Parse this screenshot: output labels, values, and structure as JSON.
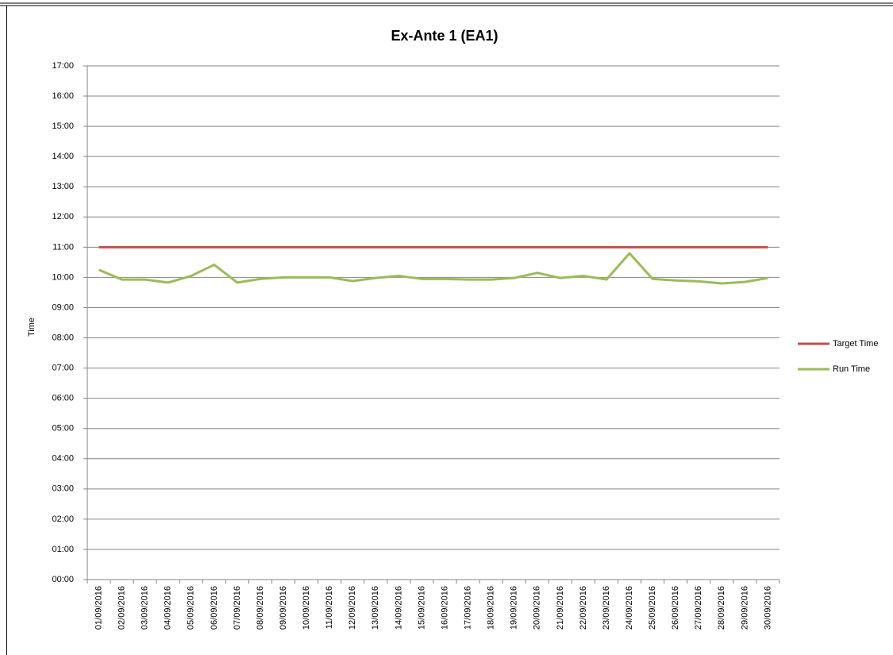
{
  "chart_data": {
    "type": "line",
    "title": "Ex-Ante 1 (EA1)",
    "y_label": "Time",
    "categories": [
      "01/09/2016",
      "02/09/2016",
      "03/09/2016",
      "04/09/2016",
      "05/09/2016",
      "06/09/2016",
      "07/09/2016",
      "08/09/2016",
      "09/09/2016",
      "10/09/2016",
      "11/09/2016",
      "12/09/2016",
      "13/09/2016",
      "14/09/2016",
      "15/09/2016",
      "16/09/2016",
      "17/09/2016",
      "18/09/2016",
      "19/09/2016",
      "20/09/2016",
      "21/09/2016",
      "22/09/2016",
      "23/09/2016",
      "24/09/2016",
      "25/09/2016",
      "26/09/2016",
      "27/09/2016",
      "28/09/2016",
      "29/09/2016",
      "30/09/2016"
    ],
    "series": [
      {
        "name": "Target Time",
        "color": "#c0504d",
        "values": [
          11,
          11,
          11,
          11,
          11,
          11,
          11,
          11,
          11,
          11,
          11,
          11,
          11,
          11,
          11,
          11,
          11,
          11,
          11,
          11,
          11,
          11,
          11,
          11,
          11,
          11,
          11,
          11,
          11,
          11
        ]
      },
      {
        "name": "Run Time",
        "color": "#9bbb59",
        "values": [
          10.25,
          9.93,
          9.93,
          9.83,
          10.05,
          10.42,
          9.83,
          9.95,
          10,
          10,
          10,
          9.88,
          9.98,
          10.05,
          9.95,
          9.95,
          9.93,
          9.93,
          9.98,
          10.15,
          9.98,
          10.05,
          9.93,
          10.8,
          9.95,
          9.9,
          9.87,
          9.8,
          9.85,
          9.98
        ]
      }
    ],
    "ylim": [
      0,
      17
    ],
    "yticks": [
      {
        "value": 0,
        "label": "00:00"
      },
      {
        "value": 1,
        "label": "01:00"
      },
      {
        "value": 2,
        "label": "02:00"
      },
      {
        "value": 3,
        "label": "03:00"
      },
      {
        "value": 4,
        "label": "04:00"
      },
      {
        "value": 5,
        "label": "05:00"
      },
      {
        "value": 6,
        "label": "06:00"
      },
      {
        "value": 7,
        "label": "07:00"
      },
      {
        "value": 8,
        "label": "08:00"
      },
      {
        "value": 9,
        "label": "09:00"
      },
      {
        "value": 10,
        "label": "10:00"
      },
      {
        "value": 11,
        "label": "11:00"
      },
      {
        "value": 12,
        "label": "12:00"
      },
      {
        "value": 13,
        "label": "13:00"
      },
      {
        "value": 14,
        "label": "14:00"
      },
      {
        "value": 15,
        "label": "15:00"
      },
      {
        "value": 16,
        "label": "16:00"
      },
      {
        "value": 17,
        "label": "17:00"
      }
    ],
    "grid": true,
    "legend": "right"
  }
}
